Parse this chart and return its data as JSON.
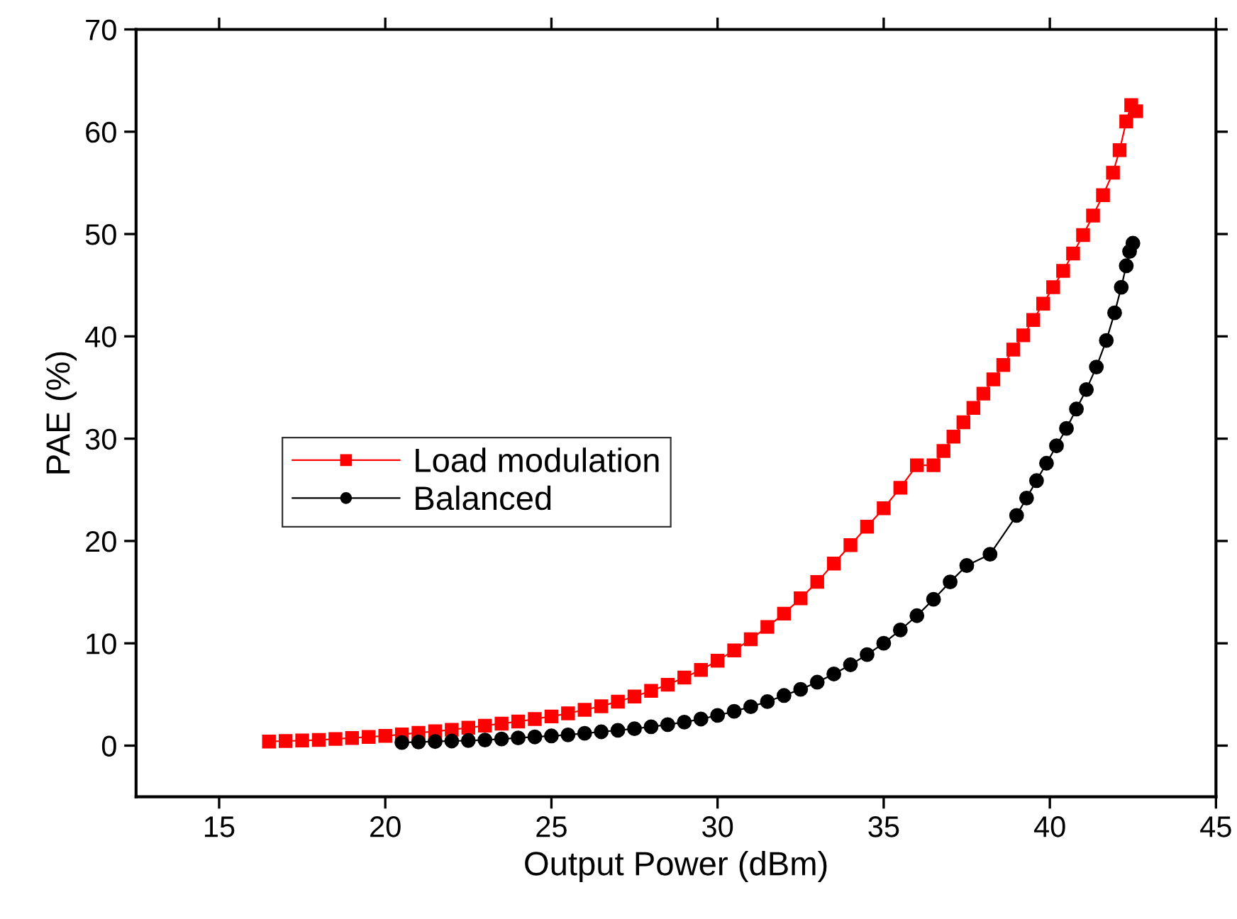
{
  "chart_data": {
    "type": "line",
    "xlabel": "Output Power (dBm)",
    "ylabel": "PAE (%)",
    "xlim": [
      12.5,
      45
    ],
    "xticks": [
      15,
      20,
      25,
      30,
      35,
      40,
      45
    ],
    "ylim": [
      -5,
      70
    ],
    "yticks": [
      0,
      10,
      20,
      30,
      40,
      50,
      60,
      70
    ],
    "grid": false,
    "legend": "left",
    "line_style": "solid",
    "series": [
      {
        "name": "Load modulation",
        "color": "#ff0000",
        "marker": "square",
        "x": [
          16.5,
          17.0,
          17.5,
          18.0,
          18.5,
          19.0,
          19.5,
          20.0,
          20.5,
          21.0,
          21.5,
          22.0,
          22.5,
          23.0,
          23.5,
          24.0,
          24.5,
          25.0,
          25.5,
          26.0,
          26.5,
          27.0,
          27.5,
          28.0,
          28.5,
          29.0,
          29.5,
          30.0,
          30.5,
          31.0,
          31.5,
          32.0,
          32.5,
          33.0,
          33.5,
          34.0,
          34.5,
          35.0,
          35.5,
          36.0,
          36.5,
          36.8,
          37.1,
          37.4,
          37.7,
          38.0,
          38.3,
          38.6,
          38.9,
          39.2,
          39.5,
          39.8,
          40.1,
          40.4,
          40.7,
          41.0,
          41.3,
          41.6,
          41.9,
          42.1,
          42.3,
          42.45,
          42.6
        ],
        "values": [
          0.4,
          0.45,
          0.5,
          0.55,
          0.65,
          0.75,
          0.85,
          0.95,
          1.1,
          1.25,
          1.4,
          1.55,
          1.75,
          1.95,
          2.15,
          2.35,
          2.6,
          2.85,
          3.15,
          3.5,
          3.85,
          4.3,
          4.8,
          5.35,
          5.95,
          6.65,
          7.4,
          8.3,
          9.3,
          10.4,
          11.6,
          12.9,
          14.4,
          16.0,
          17.8,
          19.6,
          21.4,
          23.2,
          25.2,
          27.4,
          27.4,
          28.8,
          30.2,
          31.6,
          33.0,
          34.4,
          35.8,
          37.2,
          38.7,
          40.1,
          41.6,
          43.2,
          44.8,
          46.4,
          48.1,
          49.9,
          51.8,
          53.8,
          56.0,
          58.2,
          61.0,
          62.6,
          62.0
        ]
      },
      {
        "name": "Balanced",
        "color": "#000000",
        "marker": "circle",
        "x": [
          20.5,
          21.0,
          21.5,
          22.0,
          22.5,
          23.0,
          23.5,
          24.0,
          24.5,
          25.0,
          25.5,
          26.0,
          26.5,
          27.0,
          27.5,
          28.0,
          28.5,
          29.0,
          29.5,
          30.0,
          30.5,
          31.0,
          31.5,
          32.0,
          32.5,
          33.0,
          33.5,
          34.0,
          34.5,
          35.0,
          35.5,
          36.0,
          36.5,
          37.0,
          37.5,
          38.2,
          39.0,
          39.3,
          39.6,
          39.9,
          40.2,
          40.5,
          40.8,
          41.1,
          41.4,
          41.7,
          41.95,
          42.15,
          42.3,
          42.4,
          42.5
        ],
        "values": [
          0.3,
          0.35,
          0.4,
          0.45,
          0.5,
          0.55,
          0.65,
          0.75,
          0.85,
          0.95,
          1.05,
          1.2,
          1.35,
          1.5,
          1.65,
          1.85,
          2.05,
          2.3,
          2.6,
          2.95,
          3.35,
          3.8,
          4.3,
          4.9,
          5.5,
          6.2,
          7.0,
          7.9,
          8.9,
          10.0,
          11.3,
          12.7,
          14.3,
          16.0,
          17.6,
          18.7,
          22.5,
          24.2,
          25.9,
          27.6,
          29.3,
          31.0,
          32.9,
          34.8,
          37.0,
          39.6,
          42.3,
          44.8,
          46.9,
          48.3,
          49.1
        ]
      }
    ]
  }
}
